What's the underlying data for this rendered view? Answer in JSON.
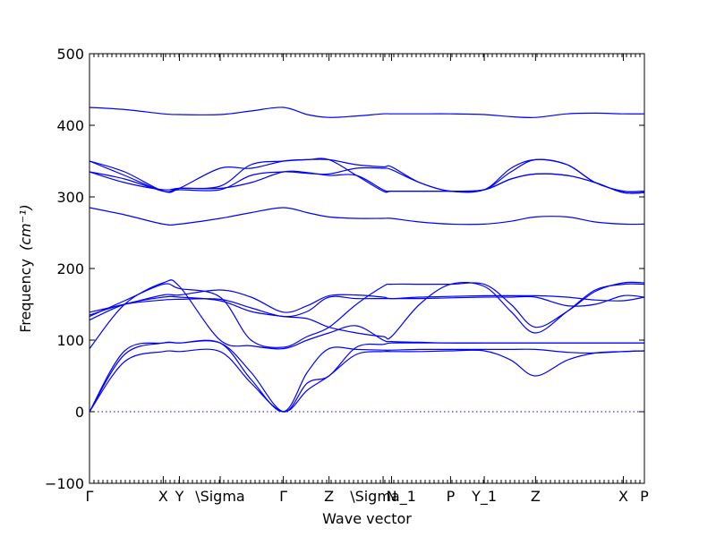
{
  "chart_data": {
    "type": "line",
    "title": "",
    "xlabel": "Wave vector",
    "ylabel": "Frequency",
    "ylabel_unit": "(cm⁻¹)",
    "ylim": [
      -100,
      500
    ],
    "yticks": [
      -100,
      0,
      100,
      200,
      300,
      400,
      500
    ],
    "xlim": [
      0,
      7.9
    ],
    "zero_line": 0,
    "line_color": "#0000ff",
    "grid": false,
    "legend": "none",
    "high_symmetry_points": [
      {
        "label": "Γ",
        "x": 0.0
      },
      {
        "label": "X",
        "x": 1.05
      },
      {
        "label": "Y",
        "x": 1.28
      },
      {
        "label": "\\Sigma",
        "x": 1.86
      },
      {
        "label": "Γ",
        "x": 2.76
      },
      {
        "label": "Z",
        "x": 3.41
      },
      {
        "label": "\\Sigma_1",
        "x": 4.18
      },
      {
        "label": "N",
        "x": 4.3
      },
      {
        "label": "P",
        "x": 5.14
      },
      {
        "label": "Y_1",
        "x": 5.62
      },
      {
        "label": "Z",
        "x": 6.35
      },
      {
        "label": "X",
        "x": 7.6
      },
      {
        "label": "P",
        "x": 7.9
      }
    ],
    "series": [
      {
        "x": [
          0,
          0.5,
          1.05,
          1.28,
          1.86,
          2.3,
          2.76,
          3.1,
          3.41,
          3.8,
          4.18,
          4.3,
          4.7,
          5.14,
          5.62,
          6.0,
          6.35,
          6.8,
          7.2,
          7.6,
          7.9
        ],
        "y": [
          0,
          70,
          84,
          84,
          84,
          40,
          0,
          30,
          50,
          80,
          84,
          84,
          84,
          85,
          85,
          72,
          50,
          72,
          82,
          84,
          85
        ]
      },
      {
        "x": [
          0,
          0.5,
          1.05,
          1.28,
          1.86,
          2.3,
          2.76,
          3.1,
          3.41,
          3.8,
          4.18,
          4.3,
          4.7,
          5.14,
          5.62,
          6.0,
          6.35,
          6.8,
          7.2,
          7.6,
          7.9
        ],
        "y": [
          0,
          80,
          96,
          96,
          96,
          45,
          0,
          55,
          88,
          87,
          86,
          86,
          87,
          87,
          87,
          87,
          87,
          83,
          82,
          84,
          85
        ]
      },
      {
        "x": [
          0,
          0.5,
          1.05,
          1.28,
          1.86,
          2.3,
          2.76,
          3.1,
          3.41,
          3.8,
          4.18,
          4.3,
          4.7,
          5.14,
          5.62,
          6.0,
          6.35,
          6.8,
          7.2,
          7.6,
          7.9
        ],
        "y": [
          0,
          85,
          96,
          96,
          96,
          55,
          0,
          40,
          50,
          90,
          94,
          96,
          96,
          96,
          96,
          96,
          96,
          96,
          96,
          96,
          96
        ]
      },
      {
        "x": [
          0,
          0.5,
          1.05,
          1.28,
          1.86,
          2.3,
          2.76,
          3.1,
          3.41,
          3.8,
          4.18,
          4.3,
          4.7,
          5.14,
          5.62,
          6.0,
          6.35,
          6.8,
          7.2,
          7.6,
          7.9
        ],
        "y": [
          88,
          150,
          180,
          175,
          100,
          92,
          88,
          100,
          110,
          120,
          100,
          98,
          97,
          96,
          96,
          96,
          96,
          96,
          96,
          96,
          96
        ]
      },
      {
        "x": [
          0,
          0.5,
          1.05,
          1.28,
          1.86,
          2.3,
          2.76,
          3.1,
          3.41,
          3.8,
          4.18,
          4.3,
          4.7,
          5.14,
          5.62,
          6.0,
          6.35,
          6.8,
          7.2,
          7.6,
          7.9
        ],
        "y": [
          128,
          150,
          160,
          160,
          155,
          140,
          133,
          130,
          118,
          110,
          105,
          105,
          150,
          178,
          175,
          140,
          110,
          140,
          170,
          178,
          178
        ]
      },
      {
        "x": [
          0,
          0.5,
          1.05,
          1.28,
          1.86,
          2.3,
          2.76,
          3.1,
          3.41,
          3.8,
          4.18,
          4.3,
          4.7,
          5.14,
          5.62,
          6.0,
          6.35,
          6.8,
          7.2,
          7.6,
          7.9
        ],
        "y": [
          133,
          155,
          178,
          172,
          160,
          100,
          90,
          105,
          118,
          150,
          175,
          178,
          178,
          178,
          178,
          150,
          118,
          140,
          168,
          180,
          180
        ]
      },
      {
        "x": [
          0,
          0.5,
          1.05,
          1.28,
          1.86,
          2.3,
          2.76,
          3.1,
          3.41,
          3.8,
          4.18,
          4.3,
          4.7,
          5.14,
          5.62,
          6.0,
          6.35,
          6.8,
          7.2,
          7.6,
          7.9
        ],
        "y": [
          139,
          150,
          163,
          163,
          170,
          160,
          139,
          148,
          162,
          163,
          160,
          158,
          160,
          161,
          162,
          162,
          162,
          160,
          156,
          155,
          160
        ]
      },
      {
        "x": [
          0,
          0.5,
          1.05,
          1.28,
          1.86,
          2.3,
          2.76,
          3.1,
          3.41,
          3.8,
          4.18,
          4.3,
          4.7,
          5.14,
          5.62,
          6.0,
          6.35,
          6.8,
          7.2,
          7.6,
          7.9
        ],
        "y": [
          135,
          150,
          156,
          157,
          157,
          145,
          133,
          140,
          160,
          158,
          158,
          158,
          158,
          159,
          160,
          160,
          160,
          148,
          150,
          162,
          160
        ]
      },
      {
        "x": [
          0,
          0.5,
          1.05,
          1.28,
          1.86,
          2.3,
          2.76,
          3.1,
          3.41,
          3.8,
          4.18,
          4.3,
          4.7,
          5.14,
          5.62,
          6.0,
          6.35,
          6.8,
          7.2,
          7.6,
          7.9
        ],
        "y": [
          285,
          275,
          262,
          262,
          270,
          278,
          285,
          278,
          272,
          270,
          270,
          270,
          265,
          262,
          262,
          266,
          272,
          272,
          265,
          262,
          262
        ]
      },
      {
        "x": [
          0,
          0.5,
          1.05,
          1.28,
          1.86,
          2.3,
          2.76,
          3.1,
          3.41,
          3.8,
          4.18,
          4.3,
          4.7,
          5.14,
          5.62,
          6.0,
          6.35,
          6.8,
          7.2,
          7.6,
          7.9
        ],
        "y": [
          335,
          325,
          308,
          310,
          310,
          330,
          335,
          333,
          332,
          340,
          340,
          338,
          320,
          308,
          310,
          325,
          332,
          330,
          320,
          306,
          306
        ]
      },
      {
        "x": [
          0,
          0.5,
          1.05,
          1.28,
          1.86,
          2.3,
          2.76,
          3.1,
          3.41,
          3.8,
          4.18,
          4.3,
          4.7,
          5.14,
          5.62,
          6.0,
          6.35,
          6.8,
          7.2,
          7.6,
          7.9
        ],
        "y": [
          335,
          320,
          310,
          312,
          312,
          320,
          335,
          334,
          330,
          330,
          310,
          308,
          308,
          308,
          310,
          325,
          332,
          330,
          320,
          306,
          306
        ]
      },
      {
        "x": [
          0,
          0.5,
          1.05,
          1.28,
          1.86,
          2.3,
          2.76,
          3.1,
          3.41,
          3.8,
          4.18,
          4.3,
          4.7,
          5.14,
          5.62,
          6.0,
          6.35,
          6.8,
          7.2,
          7.6,
          7.9
        ],
        "y": [
          350,
          335,
          308,
          312,
          340,
          340,
          350,
          352,
          352,
          330,
          308,
          308,
          308,
          308,
          310,
          335,
          352,
          345,
          320,
          308,
          308
        ]
      },
      {
        "x": [
          0,
          0.5,
          1.05,
          1.28,
          1.86,
          2.3,
          2.76,
          3.1,
          3.41,
          3.8,
          4.18,
          4.3,
          4.7,
          5.14,
          5.62,
          6.0,
          6.35,
          6.8,
          7.2,
          7.6,
          7.9
        ],
        "y": [
          350,
          330,
          308,
          312,
          315,
          345,
          350,
          352,
          352,
          345,
          342,
          342,
          320,
          308,
          310,
          340,
          352,
          345,
          320,
          308,
          308
        ]
      },
      {
        "x": [
          0,
          0.5,
          1.05,
          1.28,
          1.86,
          2.3,
          2.76,
          3.1,
          3.41,
          3.8,
          4.18,
          4.3,
          4.7,
          5.14,
          5.62,
          6.0,
          6.35,
          6.8,
          7.2,
          7.6,
          7.9
        ],
        "y": [
          425,
          422,
          416,
          415,
          415,
          420,
          425,
          415,
          411,
          413,
          416,
          416,
          416,
          416,
          415,
          412,
          411,
          416,
          417,
          416,
          416
        ]
      }
    ]
  }
}
